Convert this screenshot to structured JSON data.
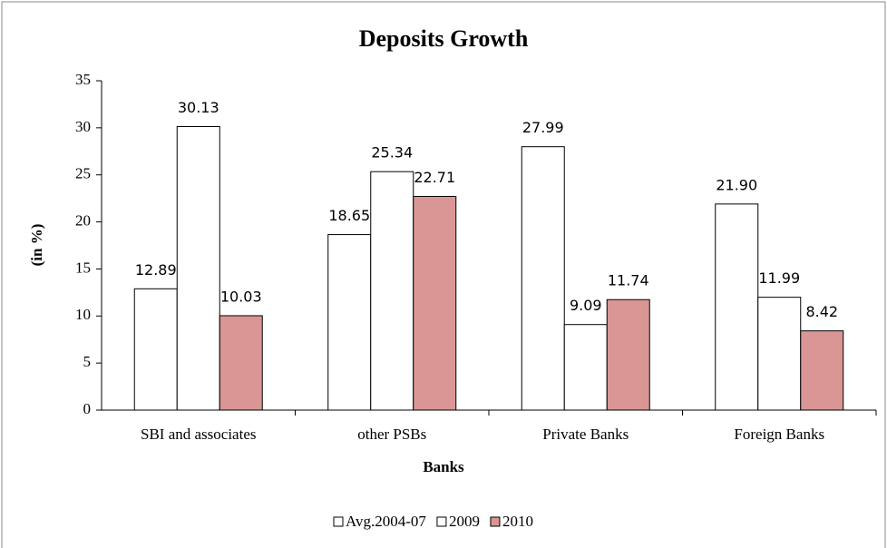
{
  "chart_data": {
    "type": "bar",
    "title": "Deposits Growth",
    "x_label": "Banks",
    "y_label": "(in %)",
    "categories": [
      "SBI and associates",
      "other PSBs",
      "Private Banks",
      "Foreign Banks"
    ],
    "series": [
      {
        "name": "Avg.2004-07",
        "color": "#ffffff",
        "values": [
          12.89,
          18.65,
          27.99,
          21.9
        ],
        "value_labels": [
          "12.89",
          "18.65",
          "27.99",
          "21.90"
        ]
      },
      {
        "name": "2009",
        "color": "#ffffff",
        "values": [
          30.13,
          25.34,
          9.09,
          11.99
        ],
        "value_labels": [
          "30.13",
          "25.34",
          "9.09",
          "11.99"
        ]
      },
      {
        "name": "2010",
        "color": "#d99694",
        "values": [
          10.03,
          22.71,
          11.74,
          8.42
        ],
        "value_labels": [
          "10.03",
          "22.71",
          "11.74",
          "8.42"
        ]
      }
    ],
    "ylim": [
      0,
      35
    ],
    "yticks": [
      0,
      5,
      10,
      15,
      20,
      25,
      30,
      35
    ],
    "legend": "bottom"
  }
}
